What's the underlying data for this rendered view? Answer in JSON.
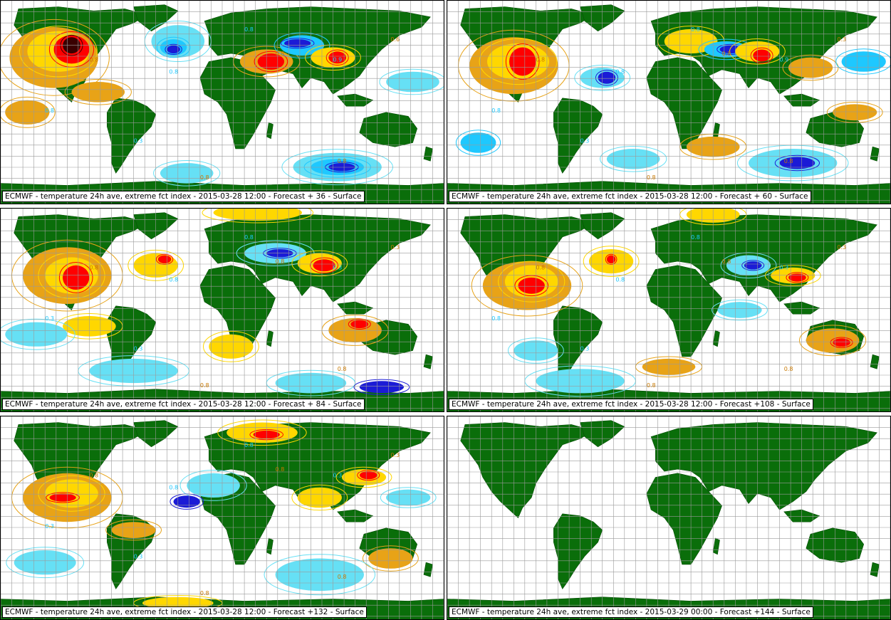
{
  "colors": {
    "land": "#0a6e0a",
    "ocean": "#ffffff",
    "grid": "#9a9a9a",
    "warm_1": "#e8a317",
    "warm_2": "#ffd700",
    "warm_3": "#ff0000",
    "warm_4": "#3a0000",
    "cold_1": "#66e0f5",
    "cold_2": "#1ec8ff",
    "cold_3": "#1b1bd6"
  },
  "panels": [
    {
      "caption": "ECMWF - temperature 24h ave, extreme fct index - 2015-03-28 12:00 - Forecast + 36 - Surface",
      "labels": [
        "0.8",
        "0.8",
        "0.8",
        "0.9",
        "0.8",
        "0.8",
        "0.8",
        "0.8",
        "0.6",
        "0.3"
      ]
    },
    {
      "caption": "ECMWF - temperature 24h ave, extreme fct index - 2015-03-28 12:00 - Forecast + 60 - Surface",
      "labels": [
        "0.8",
        "0.8",
        "0.8",
        "0.9",
        "0.8",
        "0.8",
        "0.8",
        "0.8",
        "0.3",
        "0.3"
      ]
    },
    {
      "caption": "ECMWF - temperature 24h ave, extreme fct index - 2015-03-28 12:00 - Forecast + 84 - Surface",
      "labels": [
        "0.8",
        "0.8",
        "0.8",
        "0.3",
        "0.8",
        "0.3",
        "0.8",
        "0.8",
        "0.3",
        "0.3"
      ]
    },
    {
      "caption": "ECMWF - temperature 24h ave, extreme fct index - 2015-03-28 12:00 - Forecast +108 - Surface",
      "labels": [
        "0.8",
        "0.8",
        "0.8",
        "0.3",
        "0.8",
        "0.8",
        "0.8",
        "0.8",
        "0.3",
        "0.3"
      ]
    },
    {
      "caption": "ECMWF - temperature 24h ave, extreme fct index - 2015-03-28 12:00 - Forecast +132 - Surface",
      "labels": [
        "0.8",
        "0.8",
        "0.8",
        "0.3",
        "0.8",
        "0.3",
        "0.8",
        "0.8",
        "0.3",
        "0.3"
      ]
    },
    {
      "caption": "ECMWF - temperature 24h ave, extreme fct index - 2015-03-29 00:00 - Forecast +144 - Surface",
      "labels": []
    }
  ]
}
